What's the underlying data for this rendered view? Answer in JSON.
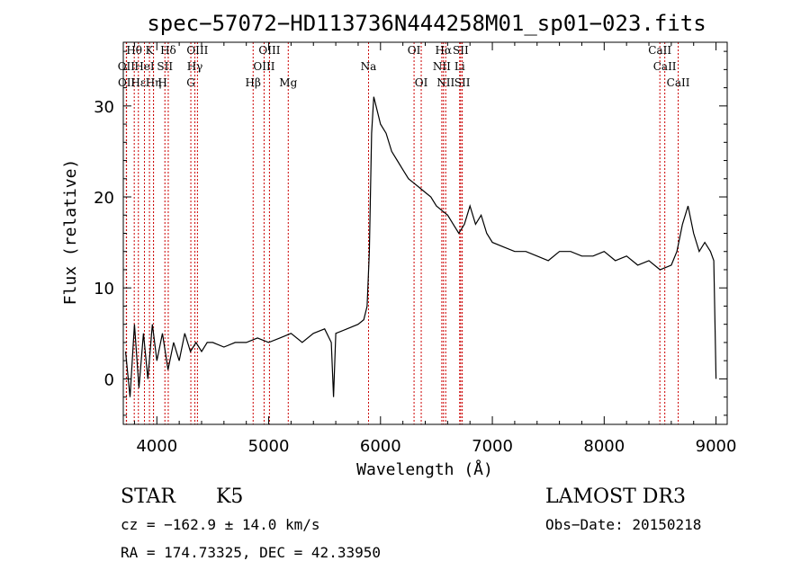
{
  "chart_data": {
    "type": "line",
    "title": "spec−57072−HD113736N444258M01_sp01−023.fits",
    "xlabel": "Wavelength (Å)",
    "ylabel": "Flux (relative)",
    "xlim": [
      3700,
      9100
    ],
    "ylim": [
      -5,
      37
    ],
    "x_ticks": [
      4000,
      5000,
      6000,
      7000,
      8000,
      9000
    ],
    "y_ticks": [
      0,
      10,
      20,
      30
    ],
    "x_tick_labels": [
      "4000",
      "5000",
      "6000",
      "7000",
      "8000",
      "9000"
    ],
    "y_tick_labels": [
      "0",
      "10",
      "20",
      "30"
    ],
    "x_minor_step": 200,
    "y_minor_step": 2,
    "line_color": "#000000",
    "marker_color": "#cc0000",
    "spectrum": {
      "name": "flux",
      "x": [
        3720,
        3760,
        3800,
        3840,
        3880,
        3920,
        3960,
        4000,
        4050,
        4100,
        4150,
        4200,
        4250,
        4300,
        4350,
        4400,
        4450,
        4500,
        4600,
        4700,
        4800,
        4900,
        5000,
        5100,
        5200,
        5300,
        5400,
        5500,
        5560,
        5580,
        5600,
        5700,
        5800,
        5850,
        5880,
        5900,
        5920,
        5940,
        5960,
        6000,
        6050,
        6100,
        6150,
        6200,
        6250,
        6300,
        6350,
        6400,
        6450,
        6500,
        6550,
        6600,
        6650,
        6700,
        6750,
        6800,
        6850,
        6900,
        6950,
        7000,
        7100,
        7200,
        7300,
        7400,
        7500,
        7600,
        7700,
        7800,
        7900,
        8000,
        8100,
        8200,
        8300,
        8400,
        8500,
        8600,
        8650,
        8700,
        8750,
        8800,
        8850,
        8900,
        8950,
        8980,
        9000
      ],
      "y": [
        3,
        -2,
        6,
        -1,
        5,
        0,
        6,
        2,
        5,
        1,
        4,
        2,
        5,
        3,
        4,
        3,
        4,
        4,
        3.5,
        4,
        4,
        4.5,
        4,
        4.5,
        5,
        4,
        5,
        5.5,
        4,
        -2,
        5,
        5.5,
        6,
        6.5,
        8,
        14,
        27,
        31,
        30,
        28,
        27,
        25,
        24,
        23,
        22,
        21.5,
        21,
        20.5,
        20,
        19,
        18.5,
        18,
        17,
        16,
        17,
        19,
        17,
        18,
        16,
        15,
        14.5,
        14,
        14,
        13.5,
        13,
        14,
        14,
        13.5,
        13.5,
        14,
        13,
        13.5,
        12.5,
        13,
        12,
        12.5,
        14,
        17,
        19,
        16,
        14,
        15,
        14,
        13,
        0
      ]
    },
    "line_markers": [
      {
        "label": "Hθ",
        "wavelength": 3798,
        "row": 1
      },
      {
        "label": "K",
        "wavelength": 3934,
        "row": 1
      },
      {
        "label": "Hδ",
        "wavelength": 4102,
        "row": 1
      },
      {
        "label": "OIII",
        "wavelength": 4363,
        "row": 1
      },
      {
        "label": "OIII",
        "wavelength": 5007,
        "row": 1
      },
      {
        "label": "OI",
        "wavelength": 6300,
        "row": 1
      },
      {
        "label": "Hα",
        "wavelength": 6563,
        "row": 1
      },
      {
        "label": "SII",
        "wavelength": 6717,
        "row": 1
      },
      {
        "label": "CaII",
        "wavelength": 8498,
        "row": 1
      },
      {
        "label": "OII",
        "wavelength": 3727,
        "row": 2
      },
      {
        "label": "HeI",
        "wavelength": 3889,
        "row": 2
      },
      {
        "label": "SII",
        "wavelength": 4072,
        "row": 2
      },
      {
        "label": "Hγ",
        "wavelength": 4340,
        "row": 2
      },
      {
        "label": "OIII",
        "wavelength": 4959,
        "row": 2
      },
      {
        "label": "Na",
        "wavelength": 5893,
        "row": 2
      },
      {
        "label": "NII",
        "wavelength": 6548,
        "row": 2
      },
      {
        "label": "Li",
        "wavelength": 6708,
        "row": 2
      },
      {
        "label": "CaII",
        "wavelength": 8542,
        "row": 2
      },
      {
        "label": "OII",
        "wavelength": 3729,
        "row": 3
      },
      {
        "label": "Hε",
        "wavelength": 3835,
        "row": 3
      },
      {
        "label": "Hη",
        "wavelength": 3970,
        "row": 3
      },
      {
        "label": "H",
        "wavelength": 3970,
        "row": 3
      },
      {
        "label": "G",
        "wavelength": 4304,
        "row": 3
      },
      {
        "label": "Hβ",
        "wavelength": 4861,
        "row": 3
      },
      {
        "label": "Mg",
        "wavelength": 5175,
        "row": 3
      },
      {
        "label": "OI",
        "wavelength": 6364,
        "row": 3
      },
      {
        "label": "NII",
        "wavelength": 6583,
        "row": 3
      },
      {
        "label": "SII",
        "wavelength": 6731,
        "row": 3
      },
      {
        "label": "CaII",
        "wavelength": 8662,
        "row": 3
      }
    ]
  },
  "info": {
    "object_class": "STAR",
    "subclass": "K5",
    "survey": "LAMOST DR3",
    "redshift_text": "cz = −162.9 ± 14.0 km/s",
    "obs_date_text": "Obs−Date: 20150218",
    "coords_text": "RA = 174.73325, DEC =  42.33950"
  }
}
